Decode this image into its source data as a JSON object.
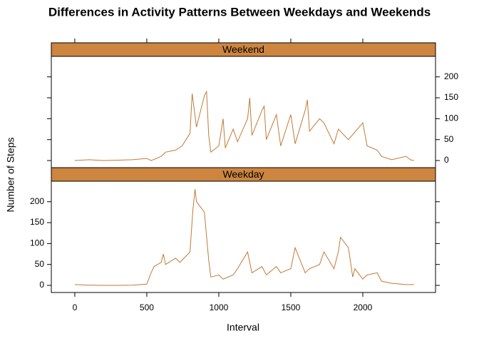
{
  "chart_data": {
    "type": "line",
    "title": "Differences in Activity Patterns Between Weekdays and Weekends",
    "xlabel": "Interval",
    "ylabel": "Number of Steps",
    "xlim": [
      -163,
      2505
    ],
    "ylim": [
      -17,
      249
    ],
    "xticks": [
      0,
      500,
      1000,
      1500,
      2000
    ],
    "yticks": [
      0,
      50,
      100,
      150,
      200
    ],
    "strip_color": "#cd853f",
    "series": [
      {
        "name": "Weekend",
        "color": "#c17a37",
        "x": [
          0,
          100,
          200,
          300,
          400,
          500,
          530,
          600,
          630,
          700,
          745,
          800,
          815,
          830,
          845,
          900,
          915,
          930,
          945,
          1000,
          1030,
          1045,
          1100,
          1130,
          1200,
          1215,
          1230,
          1300,
          1315,
          1330,
          1400,
          1430,
          1500,
          1530,
          1600,
          1615,
          1630,
          1700,
          1730,
          1800,
          1830,
          1900,
          2000,
          2030,
          2100,
          2130,
          2200,
          2300,
          2330,
          2355
        ],
        "values": [
          0,
          2,
          0,
          1,
          2,
          5,
          0,
          10,
          20,
          25,
          35,
          65,
          160,
          120,
          80,
          155,
          165,
          60,
          20,
          35,
          100,
          30,
          75,
          45,
          100,
          150,
          60,
          120,
          130,
          50,
          110,
          35,
          110,
          40,
          120,
          145,
          70,
          100,
          90,
          40,
          75,
          50,
          90,
          35,
          25,
          10,
          2,
          10,
          2,
          0
        ]
      },
      {
        "name": "Weekday",
        "color": "#c17a37",
        "x": [
          0,
          100,
          200,
          300,
          400,
          500,
          530,
          550,
          600,
          615,
          630,
          700,
          730,
          800,
          820,
          835,
          845,
          900,
          930,
          945,
          1000,
          1030,
          1100,
          1130,
          1200,
          1230,
          1300,
          1330,
          1400,
          1430,
          1500,
          1530,
          1600,
          1630,
          1700,
          1730,
          1800,
          1830,
          1845,
          1900,
          1930,
          1945,
          2000,
          2030,
          2100,
          2130,
          2200,
          2300,
          2355
        ],
        "values": [
          2,
          0.5,
          0,
          0,
          0.5,
          3,
          30,
          45,
          55,
          75,
          50,
          65,
          55,
          80,
          180,
          230,
          200,
          175,
          60,
          20,
          25,
          15,
          25,
          40,
          80,
          30,
          45,
          25,
          45,
          30,
          40,
          90,
          30,
          40,
          50,
          80,
          40,
          80,
          115,
          90,
          20,
          40,
          15,
          25,
          30,
          10,
          5,
          2,
          2
        ]
      }
    ]
  }
}
